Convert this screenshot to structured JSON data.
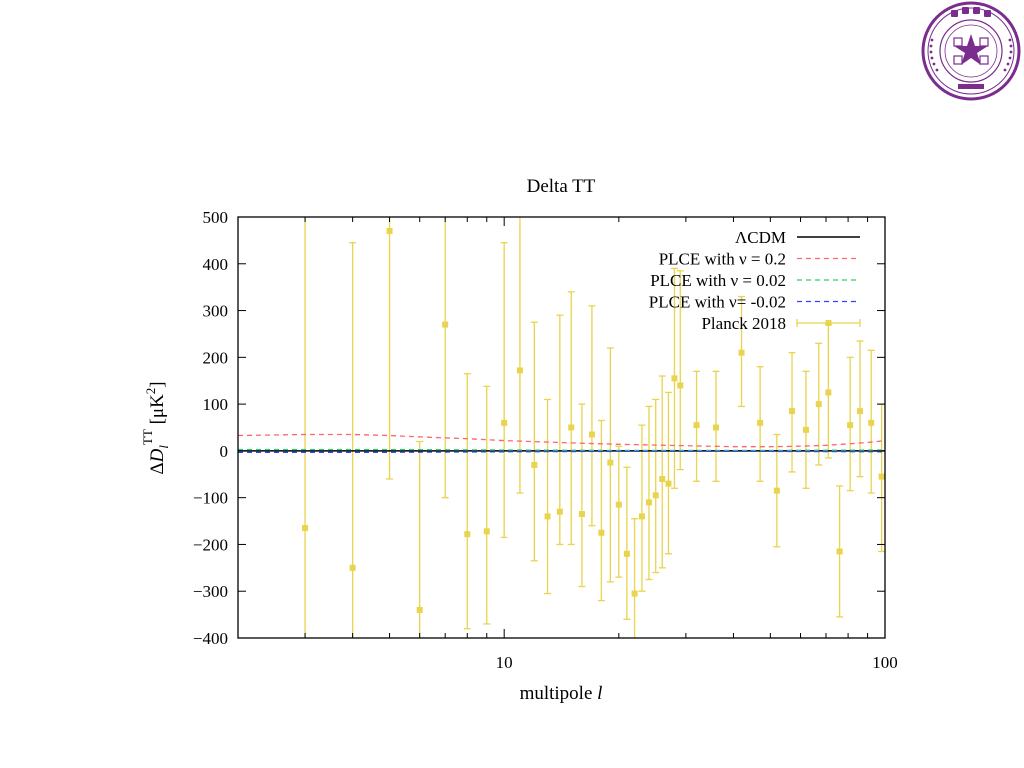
{
  "logo": {
    "name": "tsinghua-university-seal",
    "text_top": "清华大学",
    "text_left": "TSINGHUA",
    "text_right": "UNIVERSITY",
    "year": "1911",
    "color": "#7b2c8f"
  },
  "chart_data": {
    "type": "scatter",
    "title": "Delta TT",
    "xlabel": "multipole l",
    "ylabel": "ΔD_l^TT [μK^2]",
    "xscale": "log",
    "xlim": [
      2,
      100
    ],
    "ylim": [
      -400,
      500
    ],
    "xticks": [
      10,
      100
    ],
    "xtick_labels": [
      "10",
      "100"
    ],
    "yticks": [
      -400,
      -300,
      -200,
      -100,
      0,
      100,
      200,
      300,
      400,
      500
    ],
    "ytick_labels": [
      "−400",
      "−300",
      "−200",
      "−100",
      "0",
      "100",
      "200",
      "300",
      "400",
      "500"
    ],
    "legend_position": "top-right",
    "grid": false,
    "series": [
      {
        "name": "ΛCDM",
        "kind": "line",
        "style": "solid",
        "color": "#000000",
        "x": [
          2,
          100
        ],
        "y": [
          0,
          0
        ]
      },
      {
        "name": "PLCE  with ν =  0.2",
        "kind": "line",
        "style": "dashed",
        "color": "#ff6666",
        "x": [
          2,
          3,
          4,
          5,
          6,
          8,
          10,
          15,
          20,
          30,
          40,
          50,
          60,
          70,
          80,
          90,
          100
        ],
        "y": [
          33,
          35,
          35,
          33,
          30,
          26,
          22,
          17,
          14,
          11,
          9,
          9,
          10,
          12,
          15,
          18,
          22
        ]
      },
      {
        "name": "PLCE with ν = 0.02",
        "kind": "line",
        "style": "dashed",
        "color": "#33cc66",
        "x": [
          2,
          5,
          10,
          20,
          50,
          100
        ],
        "y": [
          3,
          3,
          2,
          1,
          1,
          2
        ]
      },
      {
        "name": "PLCE with ν= -0.02",
        "kind": "line",
        "style": "dashed",
        "color": "#3344ff",
        "x": [
          2,
          5,
          10,
          20,
          50,
          100
        ],
        "y": [
          -3,
          -3,
          -2,
          -1,
          -1,
          -2
        ]
      },
      {
        "name": "Planck 2018",
        "kind": "errorbar",
        "color": "#e8d44d",
        "points": [
          {
            "x": 3,
            "y": -165,
            "lo": -400,
            "hi": 500
          },
          {
            "x": 4,
            "y": -250,
            "lo": -400,
            "hi": 445
          },
          {
            "x": 5,
            "y": 470,
            "lo": -60,
            "hi": 500
          },
          {
            "x": 6,
            "y": -340,
            "lo": -400,
            "hi": 20
          },
          {
            "x": 7,
            "y": 270,
            "lo": -100,
            "hi": 500
          },
          {
            "x": 8,
            "y": -178,
            "lo": -380,
            "hi": 165
          },
          {
            "x": 9,
            "y": -172,
            "lo": -370,
            "hi": 138
          },
          {
            "x": 10,
            "y": 60,
            "lo": -185,
            "hi": 445
          },
          {
            "x": 11,
            "y": 172,
            "lo": -90,
            "hi": 500
          },
          {
            "x": 12,
            "y": -30,
            "lo": -235,
            "hi": 275
          },
          {
            "x": 13,
            "y": -140,
            "lo": -305,
            "hi": 110
          },
          {
            "x": 14,
            "y": -130,
            "lo": -200,
            "hi": 290
          },
          {
            "x": 15,
            "y": 50,
            "lo": -200,
            "hi": 340
          },
          {
            "x": 16,
            "y": -135,
            "lo": -290,
            "hi": 100
          },
          {
            "x": 17,
            "y": 35,
            "lo": -160,
            "hi": 310
          },
          {
            "x": 18,
            "y": -175,
            "lo": -320,
            "hi": 65
          },
          {
            "x": 19,
            "y": -25,
            "lo": -280,
            "hi": 220
          },
          {
            "x": 20,
            "y": -115,
            "lo": -270,
            "hi": 10
          },
          {
            "x": 21,
            "y": -220,
            "lo": -360,
            "hi": -35
          },
          {
            "x": 22,
            "y": -305,
            "lo": -400,
            "hi": -145
          },
          {
            "x": 23,
            "y": -140,
            "lo": -300,
            "hi": 55
          },
          {
            "x": 24,
            "y": -110,
            "lo": -275,
            "hi": 95
          },
          {
            "x": 25,
            "y": -95,
            "lo": -260,
            "hi": 110
          },
          {
            "x": 26,
            "y": -60,
            "lo": -250,
            "hi": 160
          },
          {
            "x": 27,
            "y": -70,
            "lo": -220,
            "hi": 125
          },
          {
            "x": 28,
            "y": 155,
            "lo": -80,
            "hi": 390
          },
          {
            "x": 29,
            "y": 140,
            "lo": -40,
            "hi": 385
          },
          {
            "x": 32,
            "y": 55,
            "lo": -65,
            "hi": 170
          },
          {
            "x": 36,
            "y": 50,
            "lo": -65,
            "hi": 170
          },
          {
            "x": 42,
            "y": 210,
            "lo": 95,
            "hi": 330
          },
          {
            "x": 47,
            "y": 60,
            "lo": -65,
            "hi": 180
          },
          {
            "x": 52,
            "y": -85,
            "lo": -205,
            "hi": 35
          },
          {
            "x": 57,
            "y": 85,
            "lo": -45,
            "hi": 210
          },
          {
            "x": 62,
            "y": 45,
            "lo": -80,
            "hi": 170
          },
          {
            "x": 67,
            "y": 100,
            "lo": -30,
            "hi": 230
          },
          {
            "x": 71,
            "y": 125,
            "lo": -15,
            "hi": 270
          },
          {
            "x": 76,
            "y": -215,
            "lo": -355,
            "hi": -75
          },
          {
            "x": 81,
            "y": 55,
            "lo": -85,
            "hi": 200
          },
          {
            "x": 86,
            "y": 85,
            "lo": -55,
            "hi": 235
          },
          {
            "x": 92,
            "y": 60,
            "lo": -90,
            "hi": 215
          },
          {
            "x": 98,
            "y": -55,
            "lo": -215,
            "hi": 100
          }
        ]
      }
    ]
  }
}
